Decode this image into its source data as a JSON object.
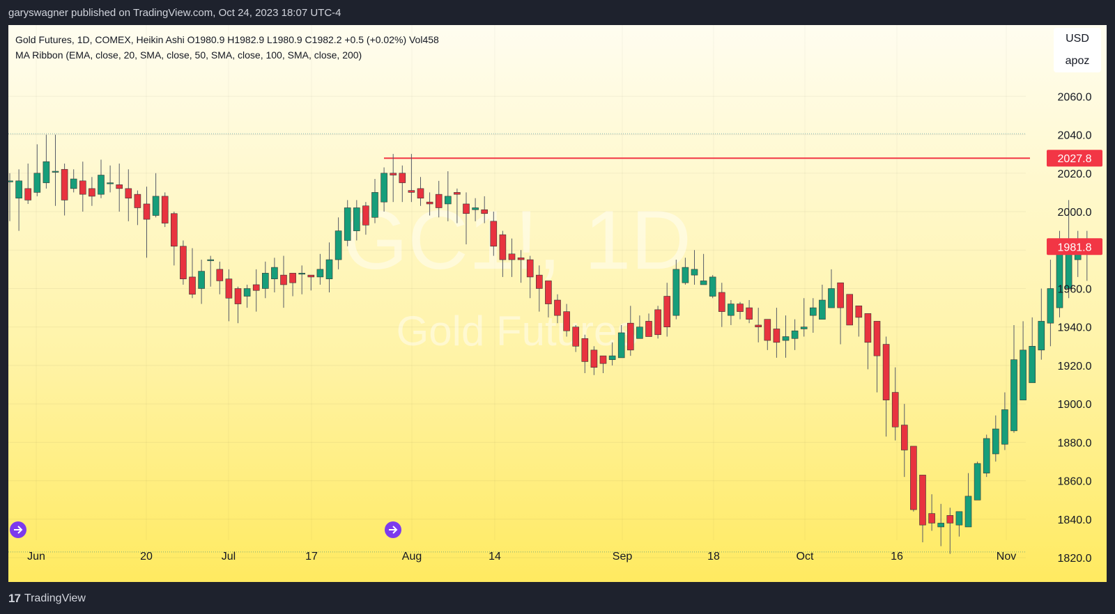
{
  "header": {
    "text": "garyswagner published on TradingView.com, Oct 24, 2023 18:07 UTC-4"
  },
  "legend": {
    "line1": "Gold Futures, 1D, COMEX, Heikin Ashi  O1980.9  H1982.9  L1980.9  C1982.2  +0.5 (+0.02%)  Vol458",
    "line2": "MA Ribbon (EMA, close, 20, SMA, close, 50, SMA, close, 100, SMA, close, 200)"
  },
  "scale_menu": {
    "currency": "USD",
    "unit": "apoz"
  },
  "watermark": {
    "symbol": "GC1!, 1D",
    "name": "Gold Futures"
  },
  "footer": {
    "logo": "17",
    "brand": "TradingView"
  },
  "colors": {
    "up": "#169e7a",
    "down": "#e8333f",
    "level": "#f23645",
    "price_tag": "#f23645",
    "text": "#131722",
    "wick": "#555a66"
  },
  "chart_data": {
    "type": "candlestick",
    "style": "Heikin Ashi",
    "ylim": [
      1811,
      2084
    ],
    "y_ticks": [
      "2060.0",
      "2040.0",
      "2020.0",
      "2000.0",
      "1980.0",
      "1960.0",
      "1940.0",
      "1920.0",
      "1900.0",
      "1880.0",
      "1860.0",
      "1840.0",
      "1820.0"
    ],
    "x_ticks": [
      "Jun",
      "20",
      "Jul",
      "17",
      "Aug",
      "14",
      "Sep",
      "18",
      "Oct",
      "16",
      "Nov"
    ],
    "level_line": {
      "value": 2027.8,
      "label": "2027.8"
    },
    "last_price": {
      "value": 1981.8,
      "label": "1981.8"
    },
    "dotted_level": 2040.5,
    "candles": [
      [
        2016,
        2016,
        2020,
        1995
      ],
      [
        2007,
        2016,
        2022,
        1990
      ],
      [
        2012,
        2006,
        2025,
        2004
      ],
      [
        2010,
        2020,
        2035,
        2008
      ],
      [
        2015,
        2026,
        2040,
        2012
      ],
      [
        2021,
        2021,
        2040,
        2003
      ],
      [
        2022,
        2006,
        2025,
        1998
      ],
      [
        2012,
        2017,
        2022,
        2010
      ],
      [
        2016,
        2009,
        2026,
        2000
      ],
      [
        2012,
        2008,
        2018,
        2003
      ],
      [
        2009,
        2019,
        2027,
        2007
      ],
      [
        2015,
        2015,
        2024,
        2010
      ],
      [
        2014,
        2012,
        2025,
        2000
      ],
      [
        2012,
        2007,
        2022,
        1995
      ],
      [
        2009,
        2002,
        2011,
        1993
      ],
      [
        2004,
        1996,
        2013,
        1976
      ],
      [
        1998,
        2008,
        2020,
        1997
      ],
      [
        2008,
        1994,
        2010,
        1992
      ],
      [
        1999,
        1982,
        2000,
        1972
      ],
      [
        1982,
        1965,
        1985,
        1962
      ],
      [
        1966,
        1957,
        1981,
        1955
      ],
      [
        1960,
        1969,
        1975,
        1952
      ],
      [
        1975,
        1975,
        1977,
        1961
      ],
      [
        1970,
        1964,
        1974,
        1957
      ],
      [
        1965,
        1955,
        1970,
        1943
      ],
      [
        1960,
        1952,
        1961,
        1942
      ],
      [
        1956,
        1960,
        1962,
        1950
      ],
      [
        1962,
        1959,
        1970,
        1948
      ],
      [
        1960,
        1968,
        1974,
        1955
      ],
      [
        1965,
        1971,
        1976,
        1958
      ],
      [
        1967,
        1962,
        1977,
        1950
      ],
      [
        1968,
        1963,
        1966,
        1956
      ],
      [
        1968,
        1968,
        1972,
        1957
      ],
      [
        1967,
        1966,
        1967,
        1959
      ],
      [
        1966,
        1970,
        1978,
        1962
      ],
      [
        1965,
        1975,
        1984,
        1958
      ],
      [
        1975,
        1990,
        1997,
        1970
      ],
      [
        1985,
        2002,
        2006,
        1982
      ],
      [
        1990,
        2002,
        2006,
        1985
      ],
      [
        2003,
        1993,
        2005,
        1988
      ],
      [
        1997,
        2010,
        2017,
        1994
      ],
      [
        2005,
        2020,
        2023,
        2000
      ],
      [
        2020,
        2019,
        2030,
        2005
      ],
      [
        2020,
        2015,
        2024,
        2005
      ],
      [
        2011,
        2010,
        2030,
        2005
      ],
      [
        2012,
        2007,
        2018,
        2003
      ],
      [
        2005,
        2004,
        2010,
        1998
      ],
      [
        2009,
        2002,
        2016,
        1997
      ],
      [
        2004,
        2008,
        2021,
        1995
      ],
      [
        2010,
        2009,
        2012,
        1994
      ],
      [
        2004,
        1999,
        2010,
        1983
      ],
      [
        2001,
        2002,
        2007,
        1995
      ],
      [
        2001,
        1999,
        2008,
        1994
      ],
      [
        1995,
        1982,
        2000,
        1977
      ],
      [
        1988,
        1975,
        1990,
        1966
      ],
      [
        1978,
        1975,
        1986,
        1966
      ],
      [
        1976,
        1975,
        1980,
        1963
      ],
      [
        1975,
        1966,
        1977,
        1955
      ],
      [
        1967,
        1960,
        1972,
        1948
      ],
      [
        1964,
        1952,
        1962,
        1945
      ],
      [
        1954,
        1946,
        1957,
        1942
      ],
      [
        1948,
        1938,
        1952,
        1935
      ],
      [
        1940,
        1930,
        1941,
        1927
      ],
      [
        1934,
        1922,
        1936,
        1916
      ],
      [
        1928,
        1919,
        1930,
        1915
      ],
      [
        1925,
        1921,
        1922,
        1916
      ],
      [
        1923,
        1925,
        1932,
        1920
      ],
      [
        1924,
        1937,
        1941,
        1926
      ],
      [
        1942,
        1928,
        1951,
        1925
      ],
      [
        1934,
        1940,
        1946,
        1935
      ],
      [
        1943,
        1935,
        1947,
        1940
      ],
      [
        1949,
        1936,
        1951,
        1934
      ],
      [
        1956,
        1940,
        1963,
        1935
      ],
      [
        1946,
        1970,
        1975,
        1944
      ],
      [
        1963,
        1971,
        1976,
        1962
      ],
      [
        1967,
        1970,
        1980,
        1962
      ],
      [
        1962,
        1964,
        1978,
        1965
      ],
      [
        1956,
        1966,
        1967,
        1955
      ],
      [
        1958,
        1948,
        1963,
        1940
      ],
      [
        1946,
        1952,
        1954,
        1941
      ],
      [
        1952,
        1948,
        1953,
        1944
      ],
      [
        1950,
        1944,
        1954,
        1942
      ],
      [
        1941,
        1940,
        1950,
        1932
      ],
      [
        1944,
        1933,
        1943,
        1928
      ],
      [
        1939,
        1932,
        1950,
        1924
      ],
      [
        1933,
        1935,
        1946,
        1924
      ],
      [
        1934,
        1938,
        1944,
        1928
      ],
      [
        1939,
        1940,
        1955,
        1935
      ],
      [
        1946,
        1950,
        1955,
        1937
      ],
      [
        1944,
        1954,
        1962,
        1946
      ],
      [
        1950,
        1960,
        1970,
        1951
      ],
      [
        1963,
        1950,
        1960,
        1931
      ],
      [
        1957,
        1941,
        1956,
        1949
      ],
      [
        1951,
        1945,
        1943,
        1935
      ],
      [
        1947,
        1932,
        1946,
        1918
      ],
      [
        1943,
        1925,
        1940,
        1906
      ],
      [
        1931,
        1902,
        1935,
        1883
      ],
      [
        1906,
        1888,
        1919,
        1881
      ],
      [
        1889,
        1876,
        1900,
        1862
      ],
      [
        1878,
        1845,
        1874,
        1844
      ],
      [
        1863,
        1837,
        1860,
        1828
      ],
      [
        1843,
        1838,
        1853,
        1834
      ],
      [
        1836,
        1838,
        1848,
        1826
      ],
      [
        1842,
        1838,
        1846,
        1822
      ],
      [
        1837,
        1844,
        1842,
        1831
      ],
      [
        1836,
        1852,
        1864,
        1845
      ],
      [
        1850,
        1869,
        1870,
        1854
      ],
      [
        1864,
        1882,
        1884,
        1862
      ],
      [
        1874,
        1887,
        1894,
        1870
      ],
      [
        1879,
        1897,
        1906,
        1876
      ],
      [
        1886,
        1923,
        1941,
        1885
      ],
      [
        1902,
        1928,
        1943,
        1918
      ],
      [
        1911,
        1930,
        1945,
        1920
      ],
      [
        1928,
        1943,
        1960,
        1923
      ],
      [
        1942,
        1960,
        1975,
        1930
      ],
      [
        1950,
        1980,
        1990,
        1945
      ],
      [
        1960,
        1985,
        2006,
        1955
      ],
      [
        1975,
        1980,
        1990,
        1966
      ],
      [
        1985,
        1980,
        1990,
        1964
      ],
      [
        1981,
        1982,
        1983,
        1981
      ]
    ]
  }
}
